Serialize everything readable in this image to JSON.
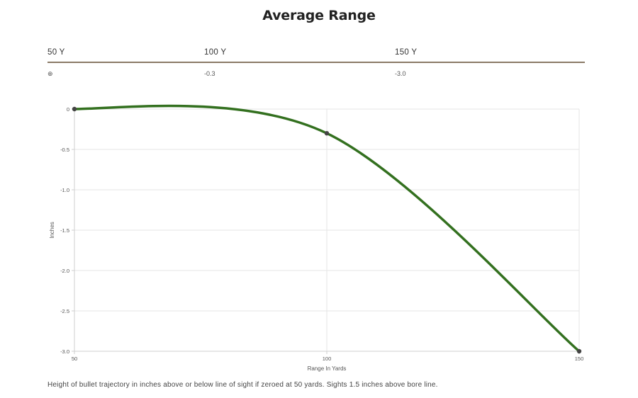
{
  "title": "Average Range",
  "table": {
    "headers": [
      "50 Y",
      "100 Y",
      "150 Y"
    ],
    "rows": [
      [
        "⊕",
        "-0.3",
        "-3.0"
      ]
    ]
  },
  "note": "Height of bullet trajectory in inches above or below line of sight if zeroed at 50 yards. Sights 1.5 inches above bore line.",
  "chart_data": {
    "type": "line",
    "title": "",
    "xlabel": "Range In Yards",
    "ylabel": "Inches",
    "x": [
      50,
      100,
      150
    ],
    "xticks": [
      "50",
      "100",
      "150"
    ],
    "ylim": [
      -3.0,
      0
    ],
    "yticks": [
      "0",
      "-0.5",
      "-1.0",
      "-1.5",
      "-2.0",
      "-2.5",
      "-3.0"
    ],
    "grid": true,
    "series": [
      {
        "values": [
          0,
          -0.3,
          -3.0
        ],
        "color": "#33701f"
      }
    ]
  }
}
